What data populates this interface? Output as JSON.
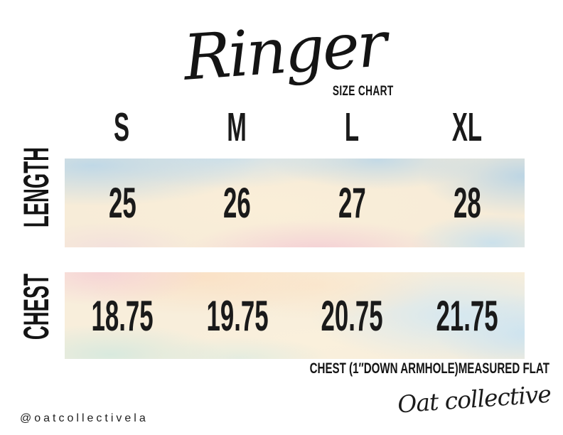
{
  "page": {
    "background": "#ffffff"
  },
  "header": {
    "title": "Ringer",
    "subtitle": "SIZE CHART"
  },
  "table": {
    "columns": [
      "S",
      "M",
      "L",
      "XL"
    ],
    "rows": [
      {
        "label": "LENGTH",
        "values": [
          "25",
          "26",
          "27",
          "28"
        ]
      },
      {
        "label": "CHEST",
        "values": [
          "18.75",
          "19.75",
          "20.75",
          "21.75"
        ]
      }
    ],
    "footnote": "CHEST (1″DOWN ARMHOLE)MEASURED FLAT"
  },
  "footer": {
    "handle": "@oatcollectivela",
    "brand_signature": "Oat collective"
  },
  "colors": {
    "text": "#1a1a1a",
    "watercolor_blue": "#c3dcee",
    "watercolor_peach": "#f9e4c8",
    "watercolor_pink": "#f4d2da",
    "watercolor_mint": "#d9e9df",
    "watercolor_cream": "#f8eed9"
  }
}
